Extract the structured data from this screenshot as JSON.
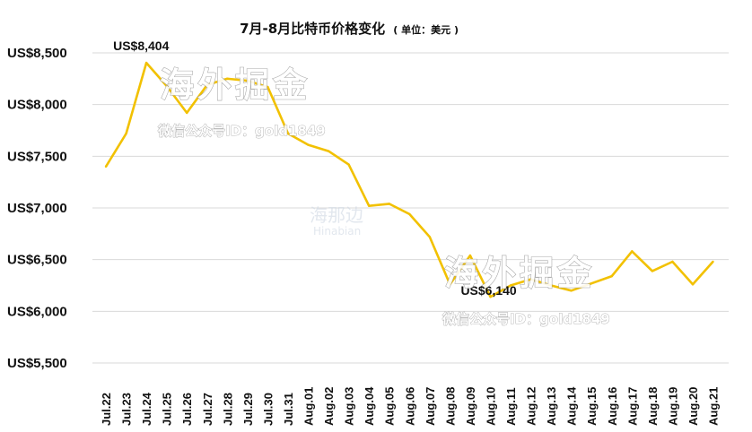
{
  "chart_data": {
    "type": "line",
    "title": "7月-8月比特币价格变化",
    "title_unit": "( 单位：美元 )",
    "xlabel": "",
    "ylabel": "",
    "ylim": [
      5500,
      8500
    ],
    "y_ticks": [
      8500,
      8000,
      7500,
      7000,
      6500,
      6000,
      5500
    ],
    "y_tick_labels": [
      "US$8,500",
      "US$8,000",
      "US$7,500",
      "US$7,000",
      "US$6,500",
      "US$6,000",
      "US$5,500"
    ],
    "grid": true,
    "legend": "none",
    "line_color": "#F2C100",
    "categories": [
      "Jul.22",
      "Jul.23",
      "Jul.24",
      "Jul.25",
      "Jul.26",
      "Jul.27",
      "Jul.28",
      "Jul.29",
      "Jul.30",
      "Jul.31",
      "Aug.01",
      "Aug.02",
      "Aug.03",
      "Aug.04",
      "Aug.05",
      "Aug.06",
      "Aug.07",
      "Aug.08",
      "Aug.09",
      "Aug.10",
      "Aug.11",
      "Aug.12",
      "Aug.13",
      "Aug.14",
      "Aug.15",
      "Aug.16",
      "Aug.17",
      "Aug.18",
      "Aug.19",
      "Aug.20",
      "Aug.21"
    ],
    "series": [
      {
        "values": [
          7400,
          7720,
          8404,
          8180,
          7920,
          8190,
          8250,
          8230,
          8170,
          7720,
          7610,
          7550,
          7420,
          7020,
          7040,
          6940,
          6720,
          6260,
          6540,
          6140,
          6250,
          6310,
          6250,
          6200,
          6270,
          6340,
          6580,
          6390,
          6480,
          6260,
          6480
        ]
      }
    ],
    "annotations": [
      {
        "text": "US$8,404",
        "category": "Jul.24",
        "value": 8404
      },
      {
        "text": "US$6,140",
        "category": "Aug.10",
        "value": 6140
      }
    ]
  },
  "watermark": {
    "brand": "海外掘金",
    "account": "微信公众号ID：gold1849",
    "logo_cn": "海那边",
    "logo_en": "Hinabian"
  }
}
